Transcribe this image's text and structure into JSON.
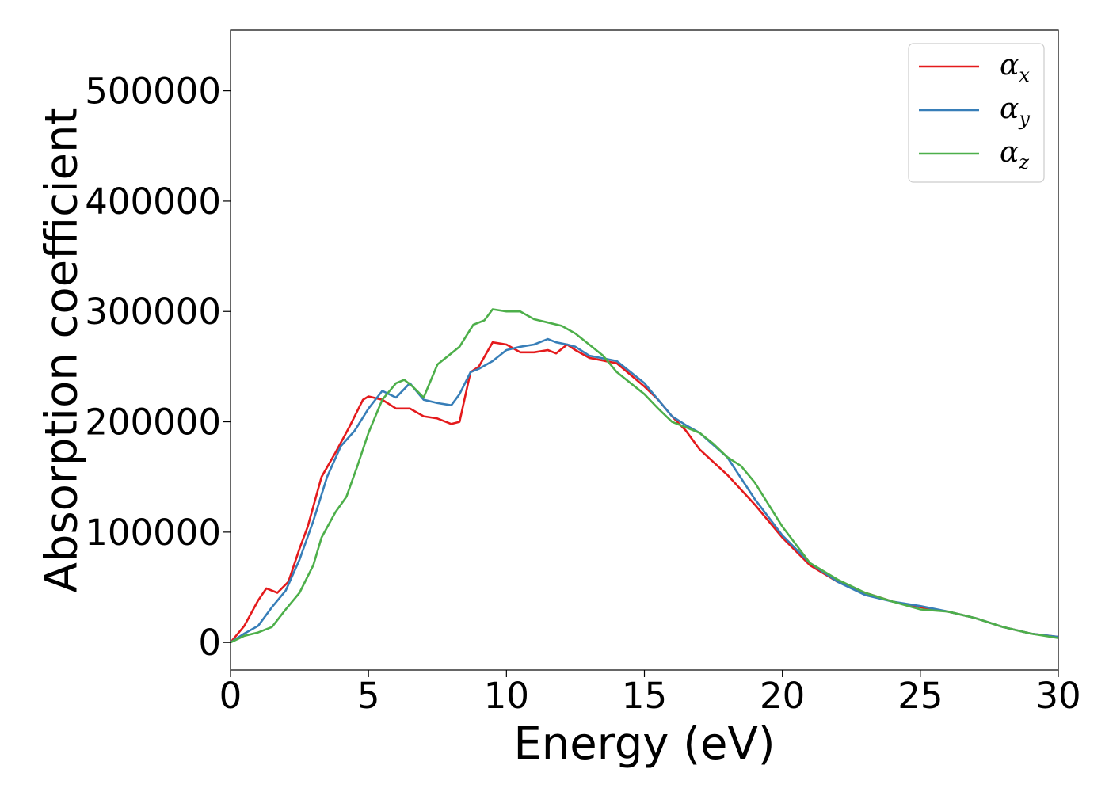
{
  "chart_data": {
    "type": "line",
    "xlabel": "Energy (eV)",
    "ylabel": "Absorption coefficient",
    "xlim": [
      0,
      30
    ],
    "ylim": [
      -25000,
      555000
    ],
    "xticks": [
      0,
      5,
      10,
      15,
      20,
      25,
      30
    ],
    "xtick_labels": [
      "0",
      "5",
      "10",
      "15",
      "20",
      "25",
      "30"
    ],
    "yticks": [
      0,
      100000,
      200000,
      300000,
      400000,
      500000
    ],
    "ytick_labels": [
      "0",
      "100000",
      "200000",
      "300000",
      "400000",
      "500000"
    ],
    "grid": false,
    "legend_position": "top-right",
    "series": [
      {
        "name": "α_x",
        "label_base": "α",
        "label_sub": "x",
        "color": "#e41a1c",
        "x": [
          0,
          0.5,
          1.0,
          1.3,
          1.7,
          2.1,
          2.5,
          2.8,
          3.3,
          3.8,
          4.3,
          4.8,
          5.0,
          5.5,
          6.0,
          6.5,
          7.0,
          7.5,
          8.0,
          8.3,
          8.7,
          9.0,
          9.5,
          10.0,
          10.5,
          11.0,
          11.5,
          11.8,
          12.2,
          12.5,
          13.0,
          14.0,
          15.0,
          15.5,
          16.0,
          16.5,
          17.0,
          18.0,
          19.0,
          20.0,
          21.0,
          22.0,
          23.0,
          24.0,
          25.0,
          26.0,
          27.0,
          28.0,
          29.0,
          30.0
        ],
        "y": [
          0,
          15000,
          38000,
          49000,
          45000,
          55000,
          85000,
          105000,
          150000,
          172000,
          195000,
          220000,
          223000,
          220000,
          212000,
          212000,
          205000,
          203000,
          198000,
          200000,
          245000,
          250000,
          272000,
          270000,
          263000,
          263000,
          265000,
          262000,
          270000,
          265000,
          258000,
          253000,
          232000,
          220000,
          205000,
          192000,
          175000,
          152000,
          125000,
          95000,
          70000,
          55000,
          45000,
          37000,
          32000,
          28000,
          22000,
          14000,
          8000,
          5000
        ]
      },
      {
        "name": "α_y",
        "label_base": "α",
        "label_sub": "y",
        "color": "#377eb8",
        "x": [
          0,
          0.5,
          1.0,
          1.5,
          2.0,
          2.5,
          3.0,
          3.5,
          4.0,
          4.5,
          5.0,
          5.5,
          6.0,
          6.5,
          7.0,
          7.5,
          8.0,
          8.3,
          8.7,
          9.0,
          9.5,
          10.0,
          10.5,
          11.0,
          11.5,
          11.8,
          12.2,
          12.5,
          13.0,
          14.0,
          15.0,
          15.5,
          16.0,
          16.5,
          17.0,
          18.0,
          19.0,
          20.0,
          21.0,
          22.0,
          23.0,
          24.0,
          25.0,
          26.0,
          27.0,
          28.0,
          29.0,
          30.0
        ],
        "y": [
          0,
          8000,
          15000,
          32000,
          47000,
          75000,
          110000,
          150000,
          178000,
          192000,
          212000,
          228000,
          222000,
          235000,
          220000,
          217000,
          215000,
          225000,
          245000,
          248000,
          255000,
          265000,
          268000,
          270000,
          275000,
          272000,
          270000,
          268000,
          260000,
          255000,
          235000,
          220000,
          205000,
          197000,
          190000,
          168000,
          130000,
          97000,
          72000,
          55000,
          43000,
          37000,
          33000,
          28000,
          22000,
          14000,
          8000,
          5000
        ]
      },
      {
        "name": "α_z",
        "label_base": "α",
        "label_sub": "z",
        "color": "#4daf4a",
        "x": [
          0,
          0.5,
          1.0,
          1.5,
          2.0,
          2.5,
          3.0,
          3.3,
          3.8,
          4.2,
          4.6,
          5.0,
          5.5,
          6.0,
          6.3,
          6.6,
          7.0,
          7.5,
          8.0,
          8.3,
          8.8,
          9.2,
          9.5,
          10.0,
          10.5,
          11.0,
          11.5,
          12.0,
          12.5,
          13.0,
          13.5,
          14.0,
          15.0,
          15.5,
          16.0,
          16.5,
          17.0,
          17.5,
          18.0,
          18.5,
          19.0,
          20.0,
          21.0,
          22.0,
          23.0,
          24.0,
          25.0,
          26.0,
          27.0,
          28.0,
          29.0,
          30.0
        ],
        "y": [
          0,
          6000,
          9000,
          14000,
          30000,
          45000,
          70000,
          95000,
          118000,
          132000,
          160000,
          190000,
          220000,
          235000,
          238000,
          232000,
          222000,
          252000,
          262000,
          268000,
          288000,
          292000,
          302000,
          300000,
          300000,
          293000,
          290000,
          287000,
          280000,
          270000,
          260000,
          245000,
          225000,
          212000,
          200000,
          195000,
          190000,
          180000,
          168000,
          160000,
          145000,
          105000,
          72000,
          57000,
          45000,
          37000,
          30000,
          28000,
          22000,
          14000,
          8000,
          4000
        ]
      }
    ]
  }
}
